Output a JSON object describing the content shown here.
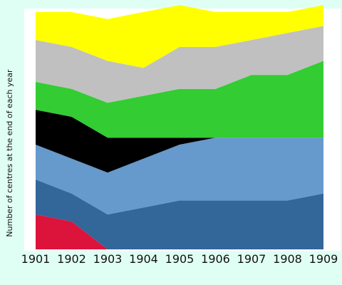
{
  "chart_data": {
    "type": "area",
    "stacked": true,
    "title": "",
    "xlabel": "",
    "ylabel": "Number of centres at the end of each year",
    "x": [
      "1901",
      "1902",
      "1903",
      "1904",
      "1905",
      "1906",
      "1907",
      "1908",
      "1909"
    ],
    "ylim": [
      0,
      34.5
    ],
    "grid": false,
    "legend": "none",
    "background": "#e0fff4",
    "plot_background": "#ffffff",
    "series": [
      {
        "color": "#dc143c",
        "values": [
          5,
          4,
          0,
          0,
          0,
          0,
          0,
          0,
          0
        ]
      },
      {
        "color": "#336699",
        "values": [
          5,
          4,
          5,
          6,
          7,
          7,
          7,
          7,
          8
        ]
      },
      {
        "color": "#6699cc",
        "values": [
          5,
          5,
          6,
          7,
          8,
          9,
          9,
          9,
          8
        ]
      },
      {
        "color": "#000000",
        "values": [
          5,
          6,
          5,
          3,
          1,
          0,
          0,
          0,
          0
        ]
      },
      {
        "color": "#33cc33",
        "values": [
          4,
          4,
          5,
          6,
          7,
          7,
          9,
          9,
          11
        ]
      },
      {
        "color": "#c0c0c0",
        "values": [
          6,
          6,
          6,
          4,
          6,
          6,
          5,
          6,
          5
        ]
      },
      {
        "color": "#ffff00",
        "values": [
          4,
          5,
          6,
          8,
          6,
          5,
          4,
          3,
          3
        ]
      }
    ]
  }
}
